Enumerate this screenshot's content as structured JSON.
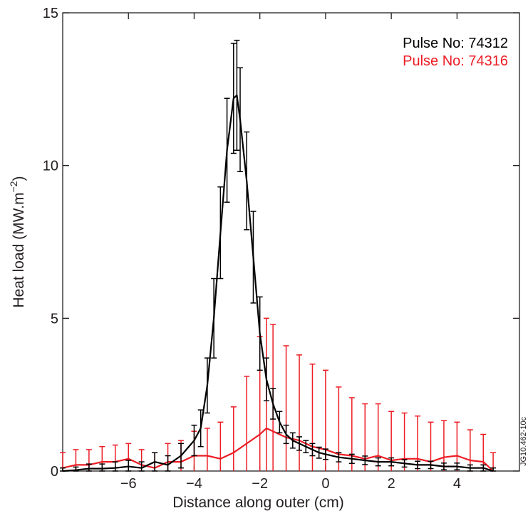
{
  "chart_data": {
    "type": "line",
    "title": "",
    "xlabel": "Distance along outer (cm)",
    "ylabel": {
      "main": "Heat load (MW.m",
      "sup": "−2",
      "close": ")"
    },
    "xlim": [
      -8.0,
      5.9
    ],
    "ylim": [
      0,
      15
    ],
    "xticks": [
      -6,
      -4,
      -2,
      0,
      2,
      4
    ],
    "xtick_labels": [
      "−6",
      "−4",
      "−2",
      "0",
      "2",
      "4"
    ],
    "yticks": [
      0,
      5,
      10,
      15
    ],
    "ytick_labels": [
      "0",
      "5",
      "10",
      "15"
    ],
    "grid": false,
    "legend_position": "top-right",
    "watermark": "JG10.462-10c",
    "series": [
      {
        "name": "Pulse No: 74312",
        "color": "#000000",
        "x": [
          -8.0,
          -7.6,
          -7.2,
          -6.8,
          -6.4,
          -6.0,
          -5.6,
          -5.2,
          -4.8,
          -4.4,
          -4.0,
          -3.8,
          -3.6,
          -3.4,
          -3.2,
          -3.0,
          -2.8,
          -2.7,
          -2.6,
          -2.4,
          -2.2,
          -2.0,
          -1.8,
          -1.6,
          -1.4,
          -1.2,
          -1.0,
          -0.8,
          -0.6,
          -0.4,
          -0.2,
          0.0,
          0.4,
          0.8,
          1.2,
          1.6,
          2.0,
          2.4,
          2.8,
          3.2,
          3.6,
          4.0,
          4.4,
          4.8,
          5.1
        ],
        "y": [
          0.0,
          0.03,
          0.08,
          0.08,
          0.1,
          0.15,
          0.1,
          0.3,
          0.2,
          0.5,
          1.0,
          1.4,
          2.8,
          5.0,
          7.8,
          10.5,
          12.2,
          12.3,
          11.5,
          9.5,
          7.0,
          4.5,
          3.0,
          2.2,
          1.6,
          1.2,
          1.0,
          0.9,
          0.8,
          0.7,
          0.6,
          0.55,
          0.45,
          0.4,
          0.35,
          0.3,
          0.3,
          0.25,
          0.2,
          0.2,
          0.15,
          0.15,
          0.1,
          0.1,
          0.0
        ],
        "err": [
          0.1,
          0.1,
          0.15,
          0.15,
          0.2,
          0.2,
          0.2,
          0.3,
          0.3,
          0.4,
          0.5,
          0.6,
          0.9,
          1.3,
          1.5,
          1.7,
          1.8,
          1.8,
          1.7,
          1.6,
          1.5,
          1.2,
          0.7,
          0.5,
          0.35,
          0.3,
          0.25,
          0.22,
          0.2,
          0.2,
          0.18,
          0.17,
          0.15,
          0.15,
          0.14,
          0.13,
          0.13,
          0.12,
          0.12,
          0.12,
          0.11,
          0.11,
          0.1,
          0.1,
          0.1
        ]
      },
      {
        "name": "Pulse No: 74316",
        "color": "#ed1c24",
        "x": [
          -8.0,
          -7.6,
          -7.2,
          -6.8,
          -6.4,
          -6.0,
          -5.6,
          -5.2,
          -4.8,
          -4.4,
          -4.0,
          -3.6,
          -3.2,
          -2.8,
          -2.4,
          -2.0,
          -1.8,
          -1.6,
          -1.2,
          -0.8,
          -0.4,
          0.0,
          0.4,
          0.8,
          1.2,
          1.6,
          2.0,
          2.4,
          2.8,
          3.2,
          3.6,
          4.0,
          4.4,
          4.8,
          5.1
        ],
        "y": [
          0.1,
          0.2,
          0.2,
          0.3,
          0.3,
          0.4,
          0.2,
          0.1,
          0.3,
          0.3,
          0.5,
          0.5,
          0.4,
          0.6,
          0.9,
          1.2,
          1.4,
          1.3,
          1.1,
          1.0,
          0.8,
          0.7,
          0.55,
          0.5,
          0.4,
          0.5,
          0.35,
          0.4,
          0.4,
          0.3,
          0.45,
          0.5,
          0.35,
          0.3,
          0.0
        ],
        "err": [
          0.5,
          0.5,
          0.5,
          0.5,
          0.55,
          0.5,
          0.5,
          0.5,
          0.6,
          0.7,
          0.8,
          0.9,
          1.2,
          1.5,
          2.2,
          3.2,
          3.6,
          3.5,
          3.0,
          2.8,
          2.7,
          2.6,
          2.2,
          1.9,
          1.8,
          1.7,
          1.6,
          1.5,
          1.4,
          1.3,
          1.2,
          1.1,
          1.0,
          0.9,
          0.6
        ]
      }
    ]
  }
}
